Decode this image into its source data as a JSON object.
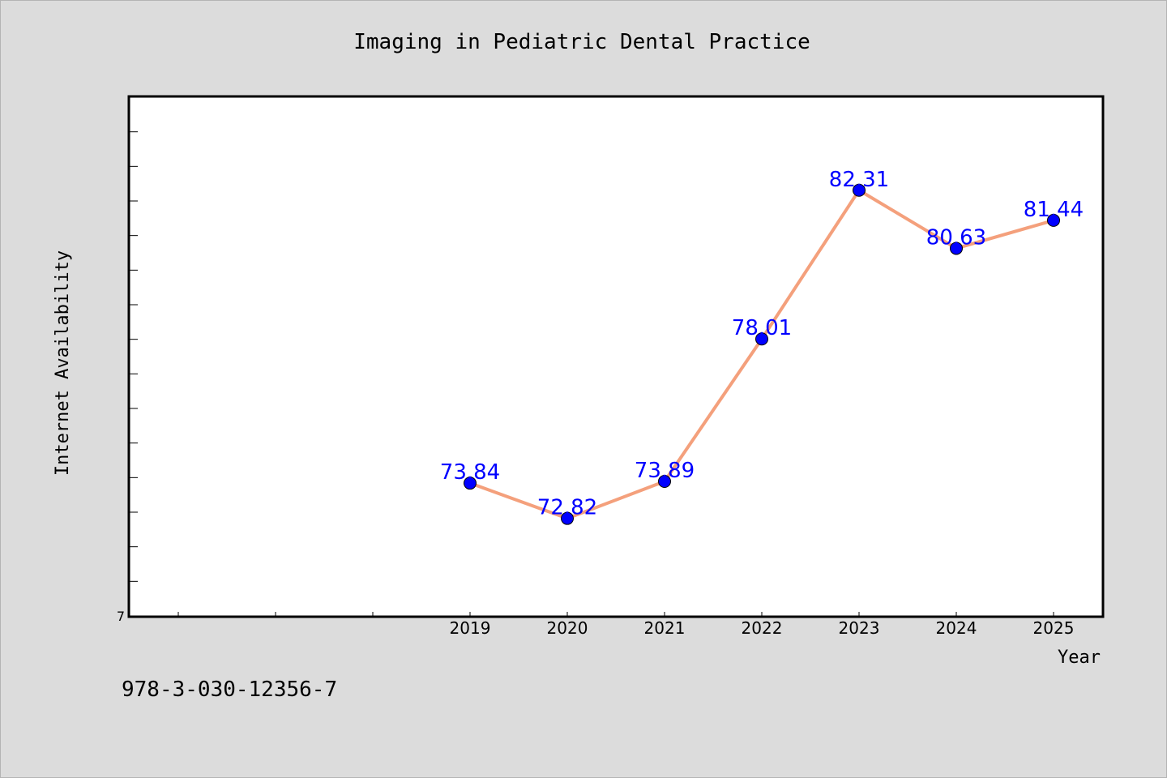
{
  "chart_data": {
    "type": "line",
    "title": "Imaging in Pediatric Dental Practice",
    "xlabel": "Year",
    "ylabel": "Internet Availability",
    "y_tick_labels": [
      "7"
    ],
    "ylim": [
      70,
      85
    ],
    "x": [
      "2019",
      "2020",
      "2021",
      "2022",
      "2023",
      "2024",
      "2025"
    ],
    "xlim_extra_ticks_left": 3,
    "series": [
      {
        "values": [
          73.84,
          72.82,
          73.89,
          78.01,
          82.31,
          80.63,
          81.44
        ],
        "labels": [
          "73.84",
          "72.82",
          "73.89",
          "78.01",
          "82.31",
          "80.63",
          "81.44"
        ],
        "line_color": "#f4a07c",
        "marker_color": "#0000ff",
        "label_color": "#0000ff"
      }
    ],
    "grid": false,
    "legend": "none"
  },
  "footer": {
    "isbn": "978-3-030-12356-7"
  }
}
